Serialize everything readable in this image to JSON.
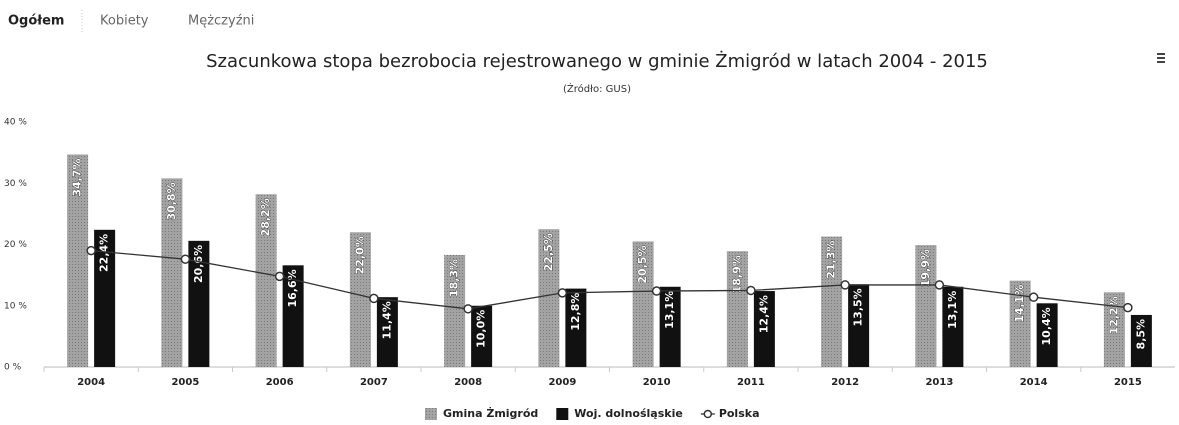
{
  "tabs": [
    "Ogółem",
    "Kobiety",
    "Mężczyźni"
  ],
  "chart_data": {
    "type": "bar",
    "title": "Szacunkowa stopa bezrobocia rejestrowanego w gminie Żmigród w latach 2004 - 2015",
    "subtitle": "(Źródło: GUS)",
    "categories": [
      "2004",
      "2005",
      "2006",
      "2007",
      "2008",
      "2009",
      "2010",
      "2011",
      "2012",
      "2013",
      "2014",
      "2015"
    ],
    "series": [
      {
        "name": "Gmina Żmigród",
        "type": "bar",
        "color": "#a3a3a3",
        "values": [
          34.7,
          30.8,
          28.2,
          22.0,
          18.3,
          22.5,
          20.5,
          18.9,
          21.3,
          19.9,
          14.1,
          12.2
        ],
        "value_labels": [
          "34,7%",
          "30,8%",
          "28,2%",
          "22,0%",
          "18,3%",
          "22,5%",
          "20,5%",
          "18,9%",
          "21,3%",
          "19,9%",
          "14,1%",
          "12,2%"
        ]
      },
      {
        "name": "Woj. dolnośląskie",
        "type": "bar",
        "color": "#111111",
        "values": [
          22.4,
          20.6,
          16.6,
          11.4,
          10.0,
          12.8,
          13.1,
          12.4,
          13.5,
          13.1,
          10.4,
          8.5
        ],
        "value_labels": [
          "22,4%",
          "20,6%",
          "16,6%",
          "11,4%",
          "10,0%",
          "12,8%",
          "13,1%",
          "12,4%",
          "13,5%",
          "13,1%",
          "10,4%",
          "8,5%"
        ]
      },
      {
        "name": "Polska",
        "type": "line",
        "color": "#333333",
        "values": [
          19.0,
          17.6,
          14.8,
          11.2,
          9.5,
          12.1,
          12.4,
          12.5,
          13.4,
          13.4,
          11.4,
          9.7
        ]
      }
    ],
    "ylim": [
      0,
      40
    ],
    "yticks": [
      {
        "value": 0,
        "label": "0 %"
      },
      {
        "value": 10,
        "label": "10 %"
      },
      {
        "value": 20,
        "label": "20 %"
      },
      {
        "value": 30,
        "label": "30 %"
      },
      {
        "value": 40,
        "label": "40 %"
      }
    ],
    "grid": false,
    "legend": "bottom"
  }
}
